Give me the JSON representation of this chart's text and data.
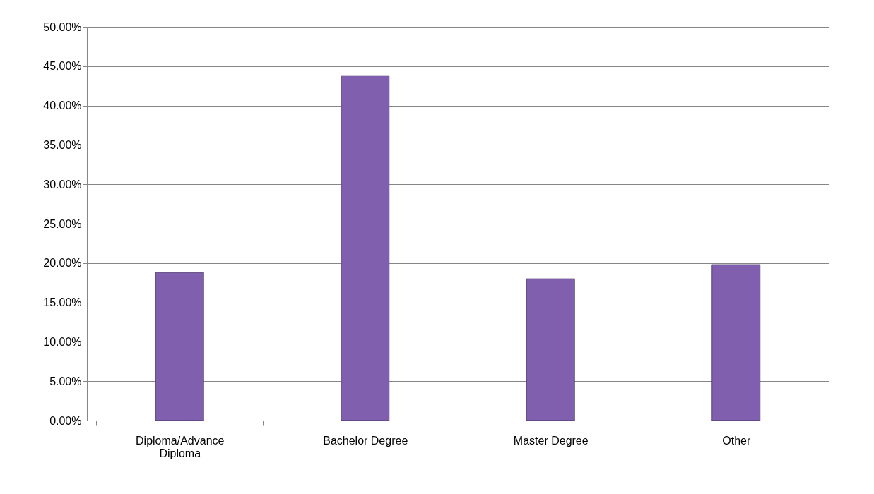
{
  "chart_data": {
    "type": "bar",
    "categories": [
      "Diploma/Advance Diploma",
      "Bachelor Degree",
      "Master Degree",
      "Other"
    ],
    "values": [
      18.8,
      43.8,
      18.0,
      19.8
    ],
    "color": "#7f5fae",
    "ylim": [
      0,
      50
    ],
    "yticks": [
      {
        "value": 0,
        "label": "0.00%"
      },
      {
        "value": 5,
        "label": "5.00%"
      },
      {
        "value": 10,
        "label": "10.00%"
      },
      {
        "value": 15,
        "label": "15.00%"
      },
      {
        "value": 20,
        "label": "20.00%"
      },
      {
        "value": 25,
        "label": "25.00%"
      },
      {
        "value": 30,
        "label": "30.00%"
      },
      {
        "value": 35,
        "label": "35.00%"
      },
      {
        "value": 40,
        "label": "40.00%"
      },
      {
        "value": 45,
        "label": "45.00%"
      },
      {
        "value": 50,
        "label": "50.00%"
      }
    ],
    "grid": "y"
  }
}
